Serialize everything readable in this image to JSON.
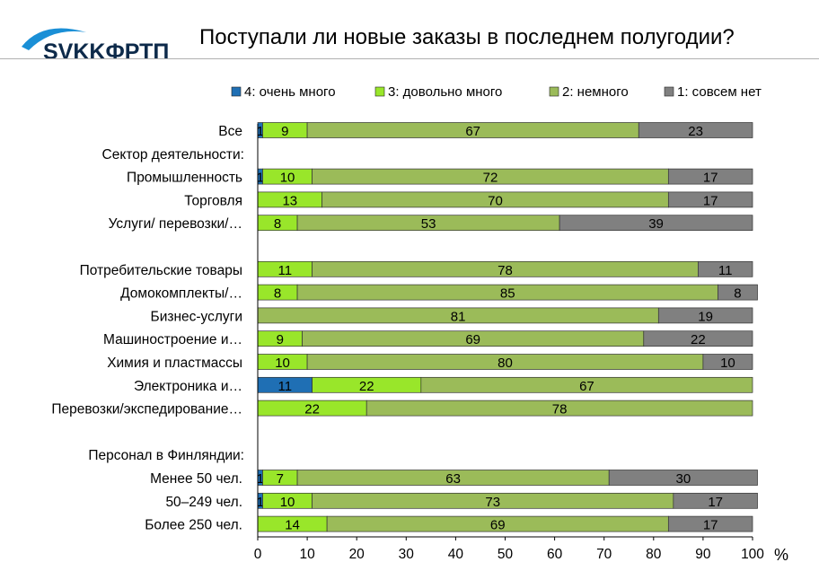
{
  "header": {
    "logo_text": "SVKKФРТП",
    "title": "Поступали ли новые заказы в последнем полугодии?"
  },
  "chart_data": {
    "type": "bar",
    "orientation": "horizontal",
    "stacked": true,
    "legend_position": "top",
    "x_unit_label": "%",
    "xlim": [
      0,
      100
    ],
    "x_ticks": [
      0,
      10,
      20,
      30,
      40,
      50,
      60,
      70,
      80,
      90,
      100
    ],
    "grid": false,
    "series": [
      {
        "name": "4: очень много",
        "color": "#1f6fb4"
      },
      {
        "name": "3: довольно много",
        "color": "#99e62a"
      },
      {
        "name": "2: немного",
        "color": "#9bbb59"
      },
      {
        "name": "1: совсем нет",
        "color": "#808080"
      }
    ],
    "rows": [
      {
        "label": "Все",
        "values": [
          1,
          9,
          67,
          23
        ]
      },
      {
        "label": "Сектор деятельности:",
        "header": true
      },
      {
        "label": "Промышленность",
        "values": [
          1,
          10,
          72,
          17
        ]
      },
      {
        "label": "Торговля",
        "values": [
          0,
          13,
          70,
          17
        ]
      },
      {
        "label": "Услуги/ перевозки/…",
        "values": [
          0,
          8,
          53,
          39
        ]
      },
      {
        "label": "",
        "spacer": true
      },
      {
        "label": "Потребительские товары",
        "values": [
          0,
          11,
          78,
          11
        ]
      },
      {
        "label": "Домокомплекты/…",
        "values": [
          0,
          8,
          85,
          8
        ]
      },
      {
        "label": "Бизнес-услуги",
        "values": [
          0,
          0,
          81,
          19
        ]
      },
      {
        "label": "Машиностроение и…",
        "values": [
          0,
          9,
          69,
          22
        ]
      },
      {
        "label": "Химия и пластмассы",
        "values": [
          0,
          10,
          80,
          10
        ]
      },
      {
        "label": "Электроника  и…",
        "values": [
          11,
          22,
          67,
          0
        ]
      },
      {
        "label": "Перевозки/экспедирование…",
        "values": [
          0,
          22,
          78,
          0
        ]
      },
      {
        "label": "",
        "spacer": true
      },
      {
        "label": "Персонал в Финляндии:",
        "header": true
      },
      {
        "label": "Менее 50 чел.",
        "values": [
          1,
          7,
          63,
          30
        ]
      },
      {
        "label": "50–249 чел.",
        "values": [
          1,
          10,
          73,
          17
        ]
      },
      {
        "label": "Более 250 чел.",
        "values": [
          0,
          14,
          69,
          17
        ]
      }
    ]
  }
}
